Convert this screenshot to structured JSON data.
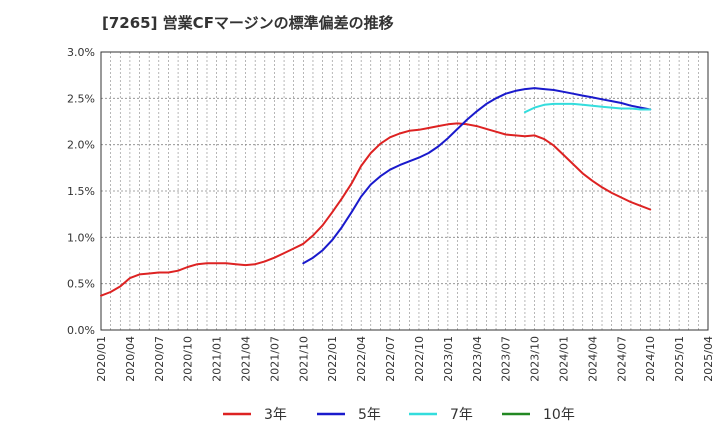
{
  "chart_data": {
    "type": "line",
    "title": "[7265]  営業CFマージンの標準偏差の推移",
    "xlabel": "",
    "ylabel": "",
    "x_range": [
      "2020/01",
      "2025/04"
    ],
    "ylim": [
      0,
      3.0
    ],
    "y_ticks": [
      "0.0%",
      "0.5%",
      "1.0%",
      "1.5%",
      "2.0%",
      "2.5%",
      "3.0%"
    ],
    "x_ticks": [
      "2020/01",
      "2020/04",
      "2020/07",
      "2020/10",
      "2021/01",
      "2021/04",
      "2021/07",
      "2021/10",
      "2022/01",
      "2022/04",
      "2022/07",
      "2022/10",
      "2023/01",
      "2023/04",
      "2023/07",
      "2023/10",
      "2024/01",
      "2024/04",
      "2024/07",
      "2024/10",
      "2025/01",
      "2025/04"
    ],
    "grid": true,
    "legend_position": "bottom",
    "series": [
      {
        "name": "3年",
        "color": "#dd2222",
        "x": [
          "2020/01",
          "2020/02",
          "2020/03",
          "2020/04",
          "2020/05",
          "2020/06",
          "2020/07",
          "2020/08",
          "2020/09",
          "2020/10",
          "2020/11",
          "2020/12",
          "2021/01",
          "2021/02",
          "2021/03",
          "2021/04",
          "2021/05",
          "2021/06",
          "2021/07",
          "2021/08",
          "2021/09",
          "2021/10",
          "2021/11",
          "2021/12",
          "2022/01",
          "2022/02",
          "2022/03",
          "2022/04",
          "2022/05",
          "2022/06",
          "2022/07",
          "2022/08",
          "2022/09",
          "2022/10",
          "2022/11",
          "2022/12",
          "2023/01",
          "2023/02",
          "2023/03",
          "2023/04",
          "2023/05",
          "2023/06",
          "2023/07",
          "2023/08",
          "2023/09",
          "2023/10",
          "2023/11",
          "2023/12",
          "2024/01",
          "2024/02",
          "2024/03",
          "2024/04",
          "2024/05",
          "2024/06",
          "2024/07",
          "2024/08",
          "2024/09",
          "2024/10"
        ],
        "values": [
          0.37,
          0.41,
          0.47,
          0.56,
          0.6,
          0.61,
          0.62,
          0.62,
          0.64,
          0.68,
          0.71,
          0.72,
          0.72,
          0.72,
          0.71,
          0.7,
          0.71,
          0.74,
          0.78,
          0.83,
          0.88,
          0.93,
          1.02,
          1.13,
          1.27,
          1.42,
          1.58,
          1.77,
          1.91,
          2.01,
          2.08,
          2.12,
          2.15,
          2.16,
          2.18,
          2.2,
          2.22,
          2.23,
          2.22,
          2.2,
          2.17,
          2.14,
          2.11,
          2.1,
          2.09,
          2.1,
          2.06,
          1.99,
          1.89,
          1.79,
          1.69,
          1.61,
          1.54,
          1.48,
          1.43,
          1.38,
          1.34,
          1.3
        ]
      },
      {
        "name": "5年",
        "color": "#1a1acc",
        "x": [
          "2021/10",
          "2021/11",
          "2021/12",
          "2022/01",
          "2022/02",
          "2022/03",
          "2022/04",
          "2022/05",
          "2022/06",
          "2022/07",
          "2022/08",
          "2022/09",
          "2022/10",
          "2022/11",
          "2022/12",
          "2023/01",
          "2023/02",
          "2023/03",
          "2023/04",
          "2023/05",
          "2023/06",
          "2023/07",
          "2023/08",
          "2023/09",
          "2023/10",
          "2023/11",
          "2023/12",
          "2024/01",
          "2024/02",
          "2024/03",
          "2024/04",
          "2024/05",
          "2024/06",
          "2024/07",
          "2024/08",
          "2024/09",
          "2024/10"
        ],
        "values": [
          0.72,
          0.78,
          0.86,
          0.97,
          1.11,
          1.27,
          1.44,
          1.57,
          1.66,
          1.73,
          1.78,
          1.82,
          1.86,
          1.91,
          1.98,
          2.07,
          2.17,
          2.27,
          2.36,
          2.44,
          2.5,
          2.55,
          2.58,
          2.6,
          2.61,
          2.6,
          2.59,
          2.57,
          2.55,
          2.53,
          2.51,
          2.49,
          2.47,
          2.45,
          2.42,
          2.4,
          2.38
        ]
      },
      {
        "name": "7年",
        "color": "#33dddd",
        "x": [
          "2023/09",
          "2023/10",
          "2023/11",
          "2023/12",
          "2024/01",
          "2024/02",
          "2024/03",
          "2024/04",
          "2024/05",
          "2024/06",
          "2024/07",
          "2024/08",
          "2024/09",
          "2024/10"
        ],
        "values": [
          2.35,
          2.4,
          2.43,
          2.44,
          2.44,
          2.44,
          2.43,
          2.42,
          2.41,
          2.4,
          2.39,
          2.39,
          2.38,
          2.38
        ]
      },
      {
        "name": "10年",
        "color": "#228822",
        "x": [],
        "values": []
      }
    ]
  }
}
